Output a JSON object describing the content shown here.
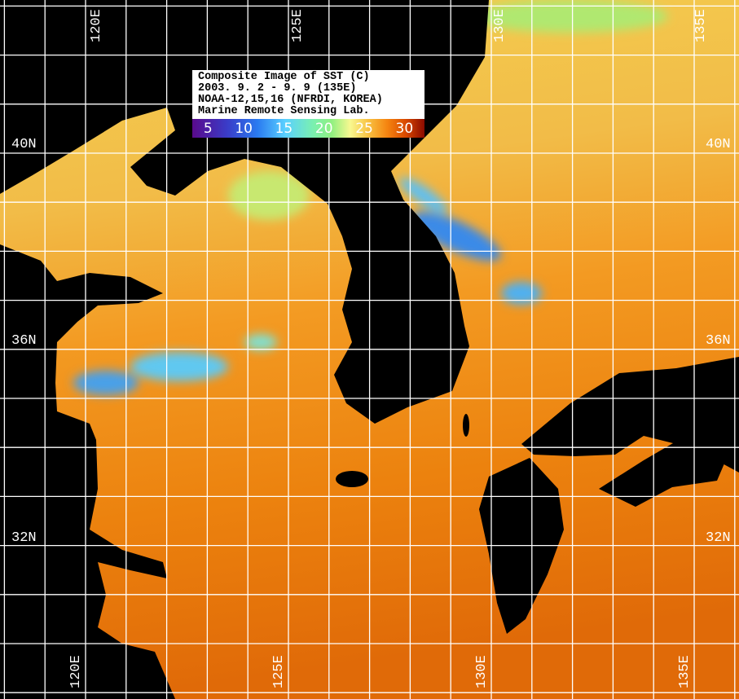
{
  "legend": {
    "lines": [
      "Composite Image of SST (C)",
      "2003. 9. 2 - 9. 9 (135E)",
      "NOAA-12,15,16 (NFRDI, KOREA)",
      "Marine Remote Sensing Lab."
    ],
    "colorbar_ticks": [
      "5",
      "10",
      "15",
      "20",
      "25",
      "30"
    ],
    "colorbar_colors": [
      "#5a0a8c",
      "#2a7af0",
      "#5ad0ff",
      "#90f080",
      "#f8c040",
      "#f58410",
      "#8a0a00"
    ]
  },
  "grid": {
    "longitude_labels": [
      "120E",
      "125E",
      "130E",
      "135E"
    ],
    "latitude_labels": [
      "40N",
      "36N",
      "32N"
    ]
  },
  "colors": {
    "land": "#000000",
    "grid": "#ffffff",
    "sst_north": "#f2c24a",
    "sst_mid": "#f39a20",
    "sst_south": "#e4720a",
    "cold_patch": "#3aa0f0"
  }
}
